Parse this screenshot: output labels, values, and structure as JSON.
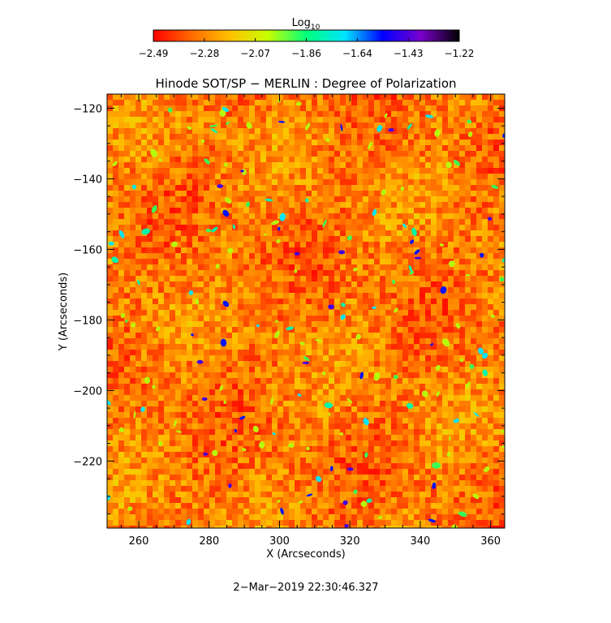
{
  "chart_data": {
    "type": "heatmap",
    "title": "Hinode SOT/SP − MERLIN : Degree of Polarization",
    "xlabel": "X (Arcseconds)",
    "ylabel": "Y (Arcseconds)",
    "xlim": [
      251,
      364
    ],
    "ylim": [
      -239,
      -116
    ],
    "x_ticks": [
      260,
      280,
      300,
      320,
      340,
      360
    ],
    "y_ticks": [
      -120,
      -140,
      -160,
      -180,
      -200,
      -220
    ],
    "colorbar": {
      "label_main": "Log",
      "label_sub": "10",
      "range": [
        -2.49,
        -1.22
      ],
      "ticks": [
        "−2.49",
        "−2.28",
        "−2.07",
        "−1.86",
        "−1.64",
        "−1.43",
        "−1.22"
      ],
      "colormap": [
        "#ff0000",
        "#ff6a00",
        "#ffc000",
        "#c8ff00",
        "#00ff7a",
        "#00e6ff",
        "#0000ff",
        "#7a00cc",
        "#000000"
      ]
    },
    "background_level": -2.3,
    "grid": false,
    "legend": "none"
  },
  "footer_timestamp": "2−Mar−2019 22:30:46.327"
}
